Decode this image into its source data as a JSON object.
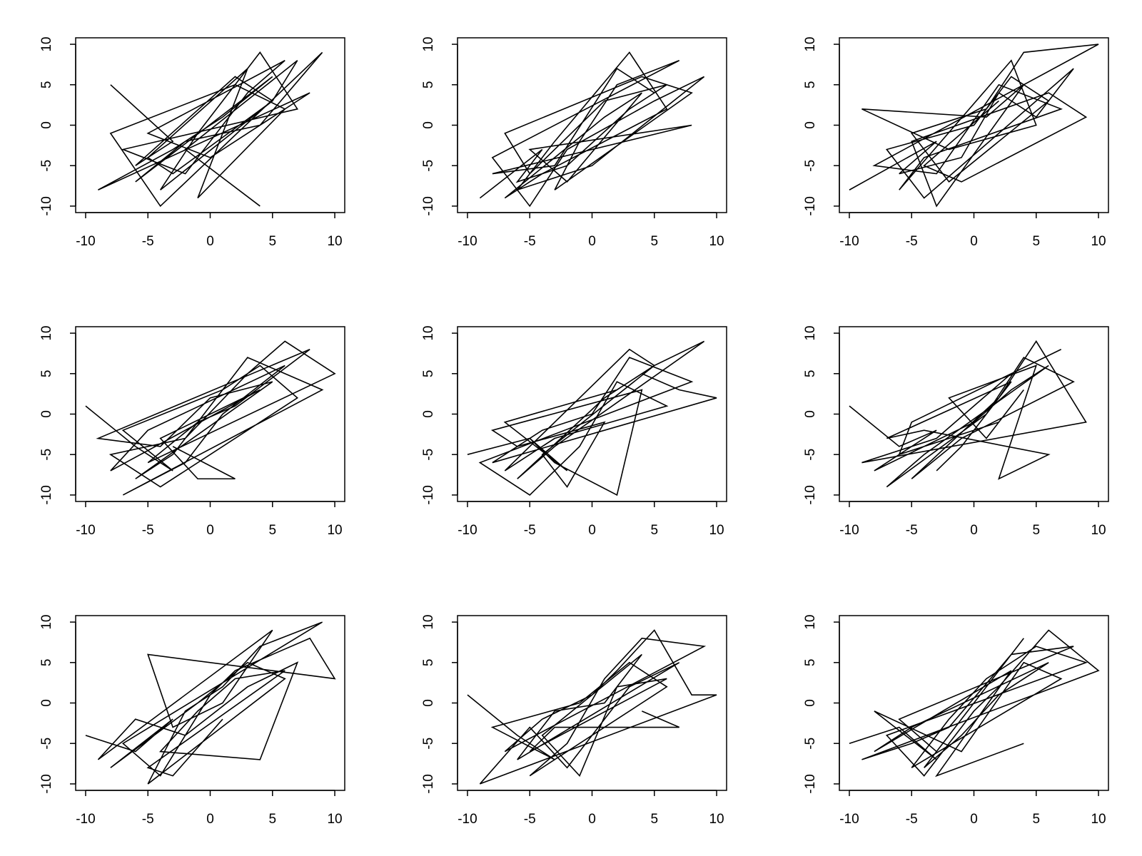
{
  "chart_data": [
    {
      "type": "line",
      "color": "#000000",
      "xlim": [
        -10.8,
        10.8
      ],
      "ylim": [
        -10.8,
        10.8
      ],
      "xticks": [
        -10,
        -5,
        0,
        5,
        10
      ],
      "yticks": [
        -10,
        -5,
        0,
        5,
        10
      ],
      "x": [
        -8,
        -3,
        -6,
        2,
        5,
        -4,
        -1,
        4,
        7,
        -7,
        -2,
        3,
        6,
        -5,
        0,
        8,
        -9,
        -3,
        1,
        5,
        -6,
        -2,
        4,
        9,
        -4,
        -8,
        2,
        6,
        -1,
        3,
        -5,
        -3,
        5,
        7,
        -2,
        4
      ],
      "values": [
        5,
        -2,
        -5,
        6,
        3,
        -8,
        -1,
        9,
        2,
        -3,
        -6,
        4,
        8,
        -1,
        -4,
        4,
        -8,
        -3,
        1,
        6,
        -7,
        -2,
        0,
        9,
        -10,
        -1,
        5,
        2,
        -9,
        7,
        -4,
        -6,
        3,
        8,
        -3,
        -10
      ]
    },
    {
      "type": "line",
      "color": "#000000",
      "xlim": [
        -10.8,
        10.8
      ],
      "ylim": [
        -10.8,
        10.8
      ],
      "xticks": [
        -10,
        -5,
        0,
        5,
        10
      ],
      "yticks": [
        -10,
        -5,
        0,
        5,
        10
      ],
      "x": [
        -9,
        -4,
        -6,
        -2,
        3,
        6,
        1,
        -5,
        -7,
        4,
        8,
        -3,
        -1,
        2,
        7,
        -8,
        -5,
        -2,
        5,
        9,
        0,
        -6,
        -3,
        3,
        6,
        -4,
        -7,
        1,
        4,
        -2,
        -5,
        8,
        -8,
        -3,
        2,
        5
      ],
      "values": [
        -9,
        -3,
        -7,
        -5,
        2,
        5,
        3,
        -6,
        -1,
        6,
        4,
        -8,
        -2,
        5,
        8,
        -4,
        -10,
        -3,
        3,
        6,
        -5,
        -8,
        -2,
        9,
        2,
        -6,
        -9,
        1,
        4,
        -7,
        -3,
        0,
        -6,
        -5,
        7,
        4
      ]
    },
    {
      "type": "line",
      "color": "#000000",
      "xlim": [
        -10.8,
        10.8
      ],
      "ylim": [
        -10.8,
        10.8
      ],
      "xticks": [
        -10,
        -5,
        0,
        5,
        10
      ],
      "yticks": [
        -10,
        -5,
        0,
        5,
        10
      ],
      "x": [
        -10,
        -3,
        -6,
        -1,
        2,
        5,
        8,
        -4,
        -7,
        0,
        3,
        6,
        -2,
        -5,
        1,
        4,
        10,
        -8,
        -3,
        2,
        7,
        -4,
        -6,
        3,
        5,
        -2,
        -9,
        1,
        4,
        -3,
        -5,
        6,
        9,
        -1,
        -4,
        2
      ],
      "values": [
        -8,
        -2,
        -6,
        -4,
        4,
        1,
        7,
        -9,
        -3,
        0,
        6,
        3,
        -7,
        -1,
        2,
        9,
        10,
        -5,
        -6,
        5,
        2,
        -4,
        -8,
        8,
        0,
        -3,
        2,
        1,
        5,
        -10,
        -2,
        4,
        1,
        -7,
        -5,
        3
      ]
    },
    {
      "type": "line",
      "color": "#000000",
      "xlim": [
        -10.8,
        10.8
      ],
      "ylim": [
        -10.8,
        10.8
      ],
      "xticks": [
        -10,
        -5,
        0,
        5,
        10
      ],
      "yticks": [
        -10,
        -5,
        0,
        5,
        10
      ],
      "x": [
        -10,
        -6,
        -3,
        -7,
        1,
        4,
        7,
        -4,
        -8,
        -2,
        3,
        6,
        10,
        -5,
        -1,
        2,
        8,
        -9,
        -4,
        0,
        5,
        -6,
        -3,
        3,
        9,
        -7,
        -2,
        1,
        6,
        -5,
        -8,
        4,
        -4,
        -1,
        2,
        -3
      ],
      "values": [
        1,
        -4,
        -7,
        -2,
        3,
        6,
        2,
        -9,
        -5,
        -3,
        5,
        9,
        5,
        -6,
        -1,
        1,
        8,
        -3,
        -4,
        2,
        4,
        -8,
        -5,
        7,
        3,
        -10,
        -6,
        0,
        6,
        -2,
        -7,
        3,
        -3,
        -8,
        -8,
        -4
      ]
    },
    {
      "type": "line",
      "color": "#000000",
      "xlim": [
        -10.8,
        10.8
      ],
      "ylim": [
        -10.8,
        10.8
      ],
      "xticks": [
        -10,
        -5,
        0,
        5,
        10
      ],
      "yticks": [
        -10,
        -5,
        0,
        5,
        10
      ],
      "x": [
        -10,
        -5,
        -2,
        -7,
        2,
        5,
        9,
        -3,
        -6,
        1,
        4,
        7,
        10,
        -8,
        -4,
        0,
        3,
        8,
        -9,
        -5,
        -1,
        2,
        6,
        -3,
        -7,
        3,
        5,
        -4,
        -2,
        1,
        -6,
        -8,
        4,
        2,
        -3,
        -5
      ],
      "values": [
        -5,
        -3,
        -7,
        -1,
        3,
        6,
        9,
        -4,
        -8,
        2,
        5,
        3,
        2,
        -6,
        -2,
        0,
        7,
        4,
        -6,
        -10,
        -4,
        4,
        1,
        -3,
        -7,
        8,
        6,
        -5,
        -9,
        -1,
        -4,
        -2,
        3,
        -10,
        -6,
        -3
      ]
    },
    {
      "type": "line",
      "color": "#000000",
      "xlim": [
        -10.8,
        10.8
      ],
      "ylim": [
        -10.8,
        10.8
      ],
      "xticks": [
        -10,
        -5,
        0,
        5,
        10
      ],
      "yticks": [
        -10,
        -5,
        0,
        5,
        10
      ],
      "x": [
        -10,
        -6,
        -3,
        -8,
        0,
        3,
        6,
        -4,
        -7,
        1,
        4,
        8,
        -1,
        -5,
        2,
        5,
        9,
        -9,
        -3,
        0,
        3,
        7,
        -5,
        -6,
        2,
        4,
        1,
        -2,
        5,
        2,
        6,
        -4,
        -7,
        3,
        -1,
        -3
      ],
      "values": [
        1,
        -4,
        -2,
        -7,
        -1,
        3,
        6,
        -5,
        -9,
        0,
        7,
        4,
        -3,
        -8,
        2,
        9,
        -1,
        -6,
        -3,
        1,
        5,
        8,
        -1,
        -5,
        -1,
        3,
        -3,
        2,
        6,
        -8,
        -5,
        -2,
        -3,
        4,
        -4,
        -7
      ]
    },
    {
      "type": "line",
      "color": "#000000",
      "xlim": [
        -10.8,
        10.8
      ],
      "ylim": [
        -10.8,
        10.8
      ],
      "xticks": [
        -10,
        -5,
        0,
        5,
        10
      ],
      "yticks": [
        -10,
        -5,
        0,
        5,
        10
      ],
      "x": [
        -10,
        -6,
        -3,
        -8,
        -1,
        3,
        6,
        -5,
        -2,
        1,
        4,
        9,
        -7,
        -4,
        0,
        2,
        5,
        8,
        10,
        -5,
        -3,
        1,
        5,
        -9,
        -6,
        -2,
        3,
        7,
        4,
        -4,
        -1,
        2,
        6,
        -5,
        -3,
        1
      ],
      "values": [
        -4,
        -6,
        -2,
        -8,
        0,
        5,
        3,
        -10,
        -1,
        2,
        7,
        10,
        -5,
        -9,
        1,
        4,
        6,
        8,
        3,
        6,
        -3,
        0,
        9,
        -7,
        -2,
        -4,
        2,
        5,
        -7,
        -6,
        -1,
        3,
        4,
        -8,
        -9,
        -2
      ]
    },
    {
      "type": "line",
      "color": "#000000",
      "xlim": [
        -10.8,
        10.8
      ],
      "ylim": [
        -10.8,
        10.8
      ],
      "xticks": [
        -10,
        -5,
        0,
        5,
        10
      ],
      "yticks": [
        -10,
        -5,
        0,
        5,
        10
      ],
      "x": [
        -10,
        -6,
        -3,
        -8,
        -1,
        3,
        6,
        -5,
        -2,
        1,
        4,
        9,
        -7,
        -4,
        0,
        2,
        5,
        8,
        10,
        -9,
        -5,
        -2,
        3,
        7,
        -6,
        -3,
        1,
        4,
        -4,
        -1,
        2,
        6,
        -5,
        -3,
        7,
        4
      ],
      "values": [
        1,
        -4,
        -7,
        -3,
        0,
        5,
        2,
        -9,
        -5,
        3,
        8,
        7,
        -6,
        -2,
        1,
        4,
        9,
        1,
        1,
        -10,
        -3,
        -8,
        2,
        5,
        -7,
        -1,
        0,
        6,
        -4,
        -9,
        2,
        3,
        -6,
        -3,
        -3,
        -1
      ]
    },
    {
      "type": "line",
      "color": "#000000",
      "xlim": [
        -10.8,
        10.8
      ],
      "ylim": [
        -10.8,
        10.8
      ],
      "xticks": [
        -10,
        -5,
        0,
        5,
        10
      ],
      "yticks": [
        -10,
        -5,
        0,
        5,
        10
      ],
      "x": [
        -10,
        -6,
        -3,
        -8,
        -1,
        4,
        7,
        -5,
        -2,
        1,
        5,
        9,
        -7,
        -4,
        0,
        2,
        6,
        10,
        -9,
        -5,
        -2,
        3,
        8,
        -6,
        -3,
        1,
        4,
        -4,
        -1,
        2,
        6,
        -5,
        -8,
        3,
        -3,
        4
      ],
      "values": [
        -5,
        -3,
        -7,
        -1,
        -6,
        5,
        3,
        -8,
        -2,
        3,
        7,
        5,
        -4,
        -9,
        -1,
        2,
        9,
        4,
        -7,
        -5,
        -3,
        6,
        7,
        -2,
        -6,
        2,
        8,
        -8,
        -4,
        1,
        5,
        -3,
        -6,
        4,
        -9,
        -5
      ]
    }
  ]
}
